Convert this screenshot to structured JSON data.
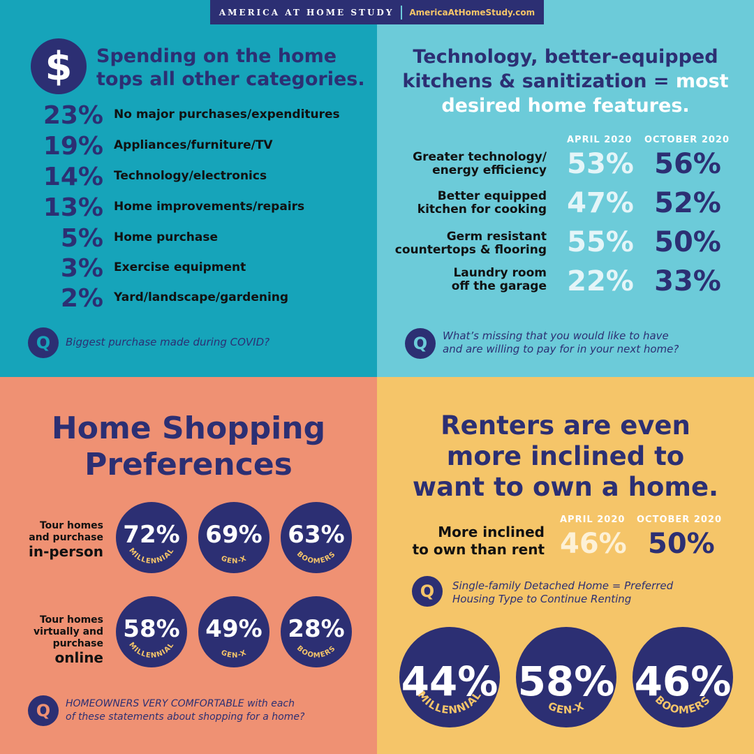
{
  "header": {
    "title": "AMERICA AT HOME STUDY",
    "url": "AmericaAtHomeStudy.com"
  },
  "spending": {
    "icon": "dollar-icon",
    "title_line1": "Spending on the home",
    "title_line2": "tops all other categories.",
    "items": [
      {
        "pct": "23%",
        "label": "No major purchases/expenditures"
      },
      {
        "pct": "19%",
        "label": "Appliances/furniture/TV"
      },
      {
        "pct": "14%",
        "label": "Technology/electronics"
      },
      {
        "pct": "13%",
        "label": "Home improvements/repairs"
      },
      {
        "pct": "5%",
        "label": "Home purchase"
      },
      {
        "pct": "3%",
        "label": "Exercise equipment"
      },
      {
        "pct": "2%",
        "label": "Yard/landscape/gardening"
      }
    ],
    "question": "Biggest purchase made during COVID?"
  },
  "features": {
    "title_line1": "Technology, better-equipped",
    "title_line2_a": "kitchens & sanitization = ",
    "title_line2_b": "most",
    "title_line3": "desired home features.",
    "col_a": "APRIL 2020",
    "col_b": "OCTOBER 2020",
    "rows": [
      {
        "line1": "Greater technology/",
        "line2": "energy efficiency",
        "a": "53%",
        "b": "56%"
      },
      {
        "line1": "Better equipped",
        "line2": "kitchen for cooking",
        "a": "47%",
        "b": "52%"
      },
      {
        "line1": "Germ resistant",
        "line2": "countertops & flooring",
        "a": "55%",
        "b": "50%"
      },
      {
        "line1": "Laundry room",
        "line2": "off the garage",
        "a": "22%",
        "b": "33%"
      }
    ],
    "question_line1": "What’s missing that you would like to have",
    "question_line2": "and are willing to pay for in your next home?"
  },
  "shopping": {
    "title_line1": "Home Shopping",
    "title_line2": "Preferences",
    "rows": [
      {
        "label_line1": "Tour homes",
        "label_line2": "and purchase",
        "label_big": "in-person",
        "values": [
          "72%",
          "69%",
          "63%"
        ]
      },
      {
        "label_line1": "Tour homes",
        "label_line2": "virtually and",
        "label_line3": "purchase",
        "label_big": "online",
        "values": [
          "58%",
          "49%",
          "28%"
        ]
      }
    ],
    "generations": [
      "MILLENNIAL",
      "GEN-X",
      "BOOMERS"
    ],
    "question_line1": "HOMEOWNERS VERY COMFORTABLE with each",
    "question_line2": "of these statements about shopping for a home?"
  },
  "renters": {
    "title_line1": "Renters are even",
    "title_line2": "more inclined to",
    "title_line3": "want to own a home.",
    "col_a": "APRIL 2020",
    "col_b": "OCTOBER 2020",
    "label_line1": "More inclined",
    "label_line2": "to own than rent",
    "a": "46%",
    "b": "50%",
    "question_line1": "Single-family Detached Home = Preferred",
    "question_line2": "Housing Type to Continue Renting",
    "values": [
      "44%",
      "58%",
      "46%"
    ],
    "generations": [
      "MILLENNIAL",
      "GEN-X",
      "BOOMERS"
    ]
  },
  "colors": {
    "navy": "#2c2f73",
    "teal": "#16a4ba",
    "light_teal": "#6ccbd9",
    "salmon": "#ef9173",
    "yellow": "#f5c569"
  }
}
